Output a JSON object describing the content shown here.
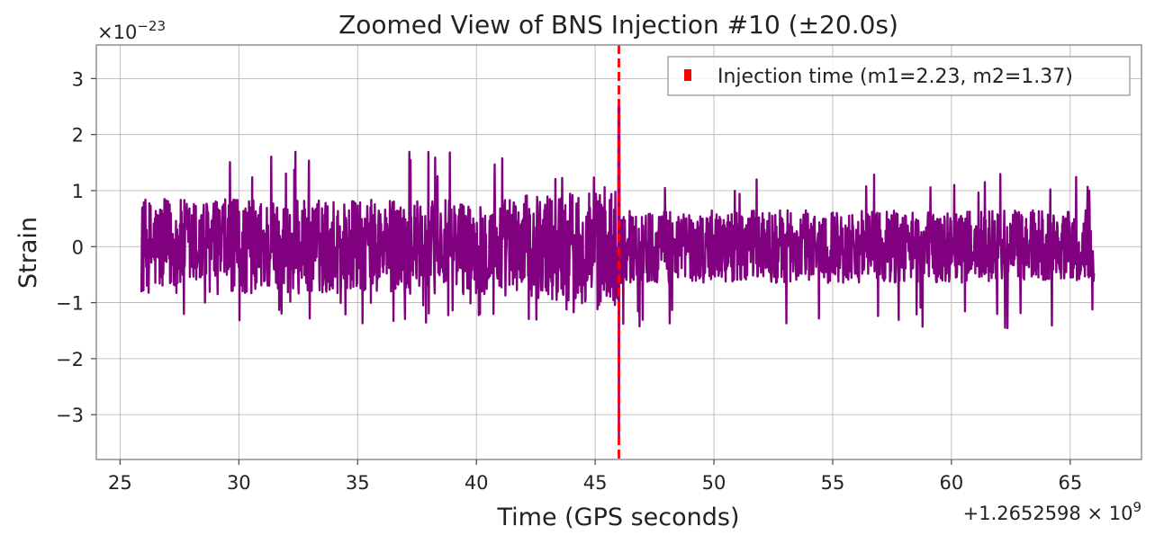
{
  "chart_data": {
    "type": "line",
    "title": "Zoomed View of BNS Injection #10 (±20.0s)",
    "xlabel": "Time (GPS seconds)",
    "ylabel": "Strain",
    "x_offset_text": "+1.2652598 × 10",
    "x_offset_exponent": "9",
    "y_scale_text": "×10",
    "y_scale_exponent": "−23",
    "xlim": [
      24,
      68
    ],
    "ylim": [
      -3.8,
      3.6
    ],
    "x_ticks": [
      25,
      30,
      35,
      40,
      45,
      50,
      55,
      60,
      65
    ],
    "x_tick_labels": [
      "25",
      "30",
      "35",
      "40",
      "45",
      "50",
      "55",
      "60",
      "65"
    ],
    "y_ticks": [
      -3,
      -2,
      -1,
      0,
      1,
      2,
      3
    ],
    "y_tick_labels": [
      "−3",
      "−2",
      "−1",
      "0",
      "1",
      "2",
      "3"
    ],
    "grid": true,
    "legend": {
      "location": "top-right",
      "entries": [
        "Injection time (m1=2.23, m2=1.37)"
      ]
    },
    "series": [
      {
        "name": "strain",
        "color": "#800080",
        "x_start": 25.9,
        "x_end": 66.0,
        "typical_amplitude_before": 1.0,
        "typical_amplitude_after": 0.65,
        "peak_before": [
          -1.4,
          1.7
        ],
        "peak_after": [
          -1.5,
          1.3
        ]
      }
    ],
    "vlines": [
      {
        "name": "Injection time (m1=2.23, m2=1.37)",
        "x": 46.0,
        "color": "#ff0000",
        "style": "dashed"
      }
    ],
    "injection_spike": {
      "x": 46.0,
      "y_min": -3.4,
      "y_max": 2.5
    }
  }
}
